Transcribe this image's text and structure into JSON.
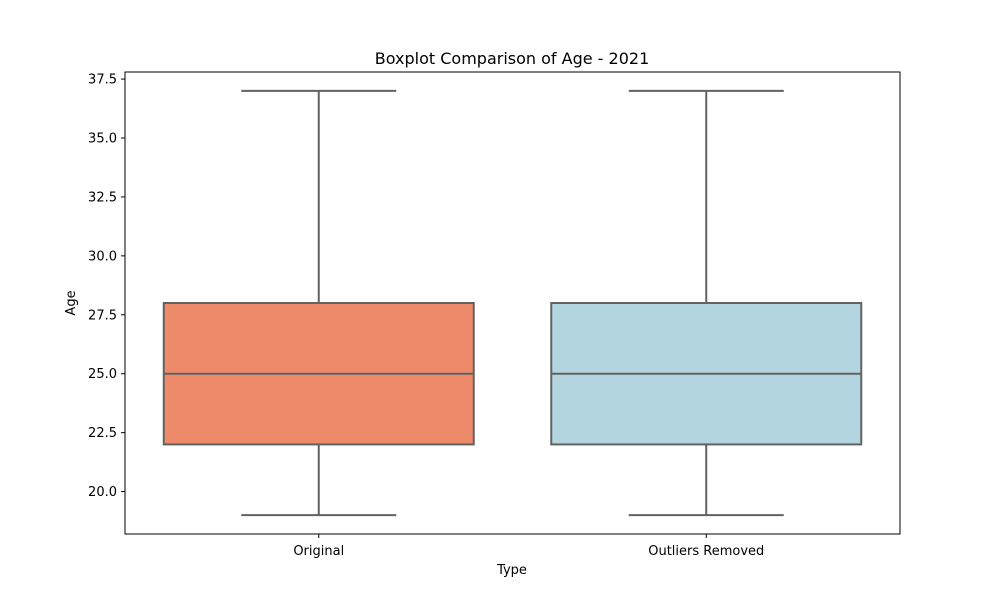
{
  "chart_data": {
    "type": "boxplot",
    "title": "Boxplot Comparison of Age - 2021",
    "xlabel": "Type",
    "ylabel": "Age",
    "ylim": [
      18.2,
      37.8
    ],
    "yticks": [
      20.0,
      22.5,
      25.0,
      27.5,
      30.0,
      32.5,
      35.0,
      37.5
    ],
    "ytick_labels": [
      "20.0",
      "22.5",
      "25.0",
      "27.5",
      "30.0",
      "32.5",
      "35.0",
      "37.5"
    ],
    "categories": [
      "Original",
      "Outliers Removed"
    ],
    "boxes": [
      {
        "category": "Original",
        "whisker_low": 19,
        "q1": 22,
        "median": 25,
        "q3": 28,
        "whisker_high": 37,
        "color": "#ec8a69"
      },
      {
        "category": "Outliers Removed",
        "whisker_low": 19,
        "q1": 22,
        "median": 25,
        "q3": 28,
        "whisker_high": 37,
        "color": "#b3d5df"
      }
    ],
    "line_color": "#626262",
    "grid": false,
    "legend": "none"
  }
}
